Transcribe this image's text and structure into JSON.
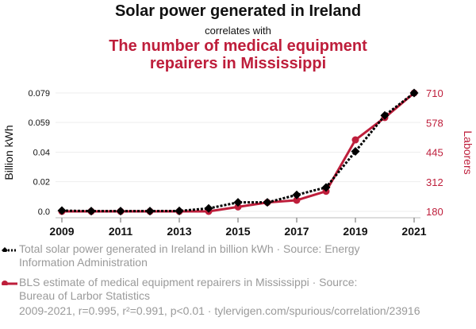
{
  "header": {
    "title": "Solar power generated in Ireland",
    "subtitle": "correlates with",
    "title2_line1": "The number of medical equipment",
    "title2_line2": "repairers in Mississippi"
  },
  "legend": [
    {
      "label": "Total solar power generated in Ireland in billion kWh · Source: Energy Information Administration",
      "color": "#000000"
    },
    {
      "label": "BLS estimate of medical equipment repairers in Mississippi · Source: Bureau of Larbor Statistics",
      "color": "#be1e3b"
    }
  ],
  "footer": "2009-2021, r=0.995, r²=0.991, p<0.01 · tylervigen.com/spurious/correlation/23916",
  "colors": {
    "series1": "#000000",
    "series2": "#be1e3b",
    "grid": "#eeeeee",
    "axis": "#bbbbbb"
  },
  "chart_data": {
    "type": "line",
    "title": "Solar power generated in Ireland correlates with The number of medical equipment repairers in Mississippi",
    "x": [
      2009,
      2010,
      2011,
      2012,
      2013,
      2014,
      2015,
      2016,
      2017,
      2018,
      2019,
      2020,
      2021
    ],
    "x_ticks": [
      "2009",
      "2011",
      "2013",
      "2015",
      "2017",
      "2019",
      "2021"
    ],
    "xlim": [
      2009,
      2021
    ],
    "y_left": {
      "label": "Billion kWh",
      "ticks": [
        "0.0",
        "0.02",
        "0.04",
        "0.059",
        "0.079"
      ],
      "tick_values": [
        0,
        0.0198,
        0.0395,
        0.0593,
        0.079
      ],
      "ylim": [
        0,
        0.079
      ]
    },
    "y_right": {
      "label": "Laborers",
      "ticks": [
        "180",
        "312",
        "445",
        "578",
        "710"
      ],
      "tick_values": [
        180,
        312.5,
        445,
        577.5,
        710
      ],
      "ylim": [
        180,
        710
      ]
    },
    "grid": true,
    "legend_position": "bottom",
    "series": [
      {
        "name": "Total solar power generated in Ireland in billion kWh",
        "axis": "left",
        "style": "dotted-diamond",
        "values": [
          0.0005,
          0.0002,
          0.0002,
          0.0002,
          0.0003,
          0.002,
          0.006,
          0.006,
          0.011,
          0.016,
          0.04,
          0.064,
          0.079
        ]
      },
      {
        "name": "BLS estimate of medical equipment repairers in Mississippi",
        "axis": "right",
        "style": "solid-circle",
        "values": [
          180,
          180,
          180,
          180,
          180,
          180,
          200,
          220,
          230,
          270,
          500,
          600,
          710
        ]
      }
    ]
  }
}
